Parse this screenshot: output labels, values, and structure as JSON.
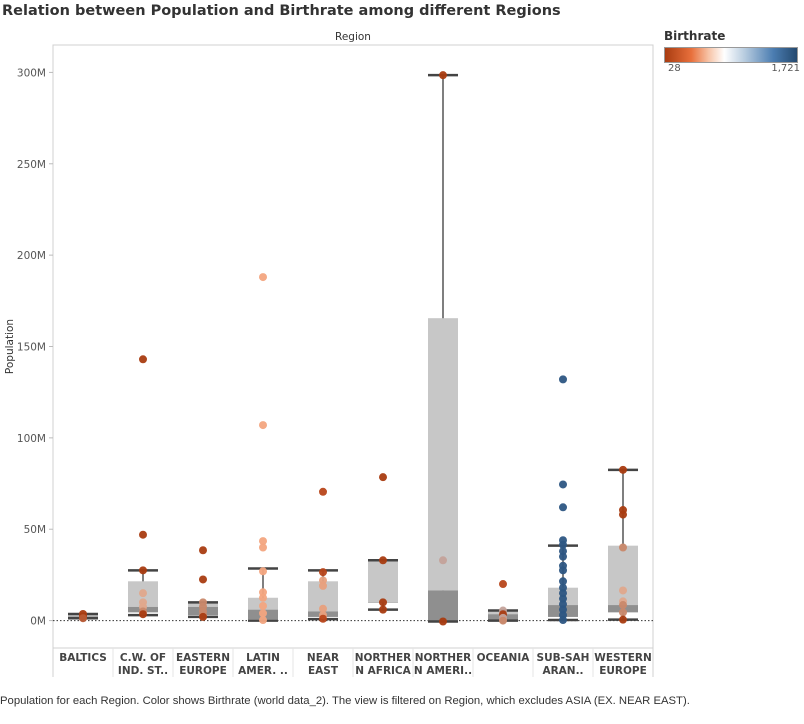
{
  "title": "Relation between Population and Birthrate among different Regions",
  "footnote": "Population for each Region.  Color shows Birthrate (world data_2). The view is filtered on Region, which excludes ASIA (EX. NEAR EAST).",
  "legend": {
    "title": "Birthrate",
    "min": "28",
    "max": "1,721",
    "colors": [
      "#a93c11",
      "#e8703c",
      "#f7c3a6",
      "#ffffff",
      "#b9cde0",
      "#4b7db1",
      "#24496f"
    ]
  },
  "chart_data": {
    "type": "boxplot",
    "title": "Relation between Population and Birthrate among different Regions",
    "column_header": "Region",
    "ylabel": "Population",
    "xlabel": "",
    "ylim": [
      -15,
      315
    ],
    "y_unit": "M",
    "y_ticks": [
      0,
      50,
      100,
      150,
      200,
      250,
      300
    ],
    "y_tick_labels": [
      "0M",
      "50M",
      "100M",
      "150M",
      "200M",
      "250M",
      "300M"
    ],
    "zero_line": "dotted",
    "categories": [
      {
        "label": [
          "BALTICS"
        ],
        "box": {
          "whisker_low": 1.3,
          "q1": 1.3,
          "median": 2.3,
          "q3": 3.6,
          "whisker_high": 3.6
        },
        "points": [
          {
            "y": 3.6,
            "color": "#a93c11"
          },
          {
            "y": 2.3,
            "color": "#a93c11"
          },
          {
            "y": 1.3,
            "color": "#b85a34"
          }
        ]
      },
      {
        "label": [
          "C.W. OF",
          "IND. ST.."
        ],
        "box": {
          "whisker_low": 3.0,
          "q1": 4.5,
          "median": 7.5,
          "q3": 21.5,
          "whisker_high": 27.5
        },
        "points": [
          {
            "y": 143,
            "color": "#a93c11"
          },
          {
            "y": 47,
            "color": "#a93c11"
          },
          {
            "y": 27.5,
            "color": "#a93c11"
          },
          {
            "y": 15,
            "color": "#e0a88c"
          },
          {
            "y": 10,
            "color": "#e0a88c"
          },
          {
            "y": 7.5,
            "color": "#e0a88c"
          },
          {
            "y": 5,
            "color": "#c9886a"
          },
          {
            "y": 3.5,
            "color": "#a93c11"
          }
        ]
      },
      {
        "label": [
          "EASTERN",
          "EUROPE"
        ],
        "box": {
          "whisker_low": 2.0,
          "q1": 3.0,
          "median": 7.5,
          "q3": 10.0,
          "whisker_high": 10.0
        },
        "points": [
          {
            "y": 38.5,
            "color": "#a93c11"
          },
          {
            "y": 22.5,
            "color": "#a93c11"
          },
          {
            "y": 10,
            "color": "#c9886a"
          },
          {
            "y": 7.5,
            "color": "#c9886a"
          },
          {
            "y": 5,
            "color": "#c9886a"
          },
          {
            "y": 3,
            "color": "#c9886a"
          },
          {
            "y": 2,
            "color": "#a93c11"
          }
        ]
      },
      {
        "label": [
          "LATIN",
          "AMER. .."
        ],
        "box": {
          "whisker_low": 0,
          "q1": 0.8,
          "median": 6.0,
          "q3": 12.5,
          "whisker_high": 28.5
        },
        "points": [
          {
            "y": 188,
            "color": "#f3a57f"
          },
          {
            "y": 107,
            "color": "#f3a57f"
          },
          {
            "y": 43.5,
            "color": "#f3a57f"
          },
          {
            "y": 40,
            "color": "#f3a57f"
          },
          {
            "y": 27,
            "color": "#f3a57f"
          },
          {
            "y": 15.5,
            "color": "#f3a57f"
          },
          {
            "y": 12.5,
            "color": "#f3a57f"
          },
          {
            "y": 8,
            "color": "#f3a57f"
          },
          {
            "y": 4,
            "color": "#f3a57f"
          },
          {
            "y": 0.3,
            "color": "#f3a57f"
          }
        ]
      },
      {
        "label": [
          "NEAR",
          "EAST"
        ],
        "box": {
          "whisker_low": 0.8,
          "q1": 2.0,
          "median": 5.0,
          "q3": 21.5,
          "whisker_high": 27.5
        },
        "points": [
          {
            "y": 70.5,
            "color": "#b8461a"
          },
          {
            "y": 26.5,
            "color": "#b8461a"
          },
          {
            "y": 22,
            "color": "#e8a07d"
          },
          {
            "y": 19,
            "color": "#e8a07d"
          },
          {
            "y": 6.5,
            "color": "#e8a07d"
          },
          {
            "y": 3,
            "color": "#e8a07d"
          },
          {
            "y": 1,
            "color": "#b8461a"
          }
        ]
      },
      {
        "label": [
          "NORTHER",
          "N AFRICA"
        ],
        "box": {
          "whisker_low": 6.0,
          "q1": 10.0,
          "median": 10.0,
          "q3": 33.0,
          "whisker_high": 33.0
        },
        "points": [
          {
            "y": 78.5,
            "color": "#a93c11"
          },
          {
            "y": 33,
            "color": "#a93c11"
          },
          {
            "y": 10,
            "color": "#a93c11"
          },
          {
            "y": 6,
            "color": "#a93c11"
          }
        ]
      },
      {
        "label": [
          "NORTHER",
          "N AMERI.."
        ],
        "box": {
          "whisker_low": -0.5,
          "q1": 0,
          "median": 16.5,
          "q3": 165.5,
          "whisker_high": 298.5
        },
        "points": [
          {
            "y": 298.5,
            "color": "#a93c11"
          },
          {
            "y": 33,
            "color": "#c4a29a"
          },
          {
            "y": -0.5,
            "color": "#a93c11"
          }
        ]
      },
      {
        "label": [
          "OCEANIA"
        ],
        "box": {
          "whisker_low": 0,
          "q1": 0.5,
          "median": 3.5,
          "q3": 5.5,
          "whisker_high": 5.5
        },
        "points": [
          {
            "y": 20,
            "color": "#b8461a"
          },
          {
            "y": 5.5,
            "color": "#c4a29a"
          },
          {
            "y": 3.5,
            "color": "#a93c11"
          },
          {
            "y": 1.5,
            "color": "#c4a29a"
          },
          {
            "y": 0.5,
            "color": "#c4a29a"
          },
          {
            "y": 0,
            "color": "#c9886a"
          }
        ]
      },
      {
        "label": [
          "SUB-SAH",
          "ARAN.."
        ],
        "box": {
          "whisker_low": 0.3,
          "q1": 2.0,
          "median": 8.5,
          "q3": 18.0,
          "whisker_high": 41.0
        },
        "points": [
          {
            "y": 132,
            "color": "#2d5683"
          },
          {
            "y": 74.5,
            "color": "#2d5683"
          },
          {
            "y": 62,
            "color": "#2d5683"
          },
          {
            "y": 44,
            "color": "#2d5683"
          },
          {
            "y": 41.5,
            "color": "#2d5683"
          },
          {
            "y": 38,
            "color": "#2d5683"
          },
          {
            "y": 35,
            "color": "#2d5683"
          },
          {
            "y": 30,
            "color": "#2d5683"
          },
          {
            "y": 27.5,
            "color": "#2d5683"
          },
          {
            "y": 21.5,
            "color": "#2d5683"
          },
          {
            "y": 18,
            "color": "#2d5683"
          },
          {
            "y": 15,
            "color": "#2d5683"
          },
          {
            "y": 12,
            "color": "#2d5683"
          },
          {
            "y": 9,
            "color": "#2d5683"
          },
          {
            "y": 6,
            "color": "#2d5683"
          },
          {
            "y": 3,
            "color": "#2d5683"
          },
          {
            "y": 0.3,
            "color": "#2d5683"
          }
        ]
      },
      {
        "label": [
          "WESTERN",
          "EUROPE"
        ],
        "box": {
          "whisker_low": 0.5,
          "q1": 4.5,
          "median": 8.5,
          "q3": 41.0,
          "whisker_high": 82.5
        },
        "points": [
          {
            "y": 82.5,
            "color": "#a93c11"
          },
          {
            "y": 60.5,
            "color": "#a93c11"
          },
          {
            "y": 58,
            "color": "#a93c11"
          },
          {
            "y": 40,
            "color": "#c9886a"
          },
          {
            "y": 16.5,
            "color": "#e0a88c"
          },
          {
            "y": 10.5,
            "color": "#e0a88c"
          },
          {
            "y": 8.5,
            "color": "#c9886a"
          },
          {
            "y": 4.5,
            "color": "#c9886a"
          },
          {
            "y": 0.5,
            "color": "#a93c11"
          }
        ]
      }
    ]
  }
}
